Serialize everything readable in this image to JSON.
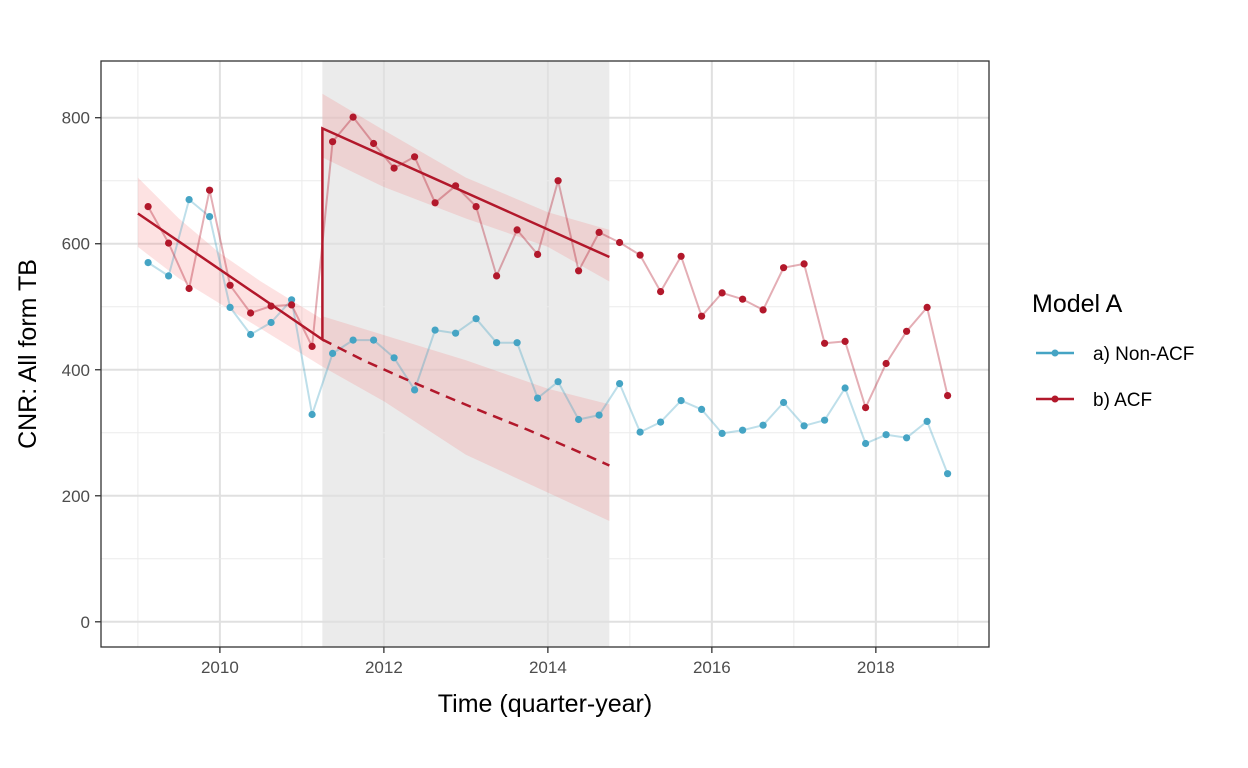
{
  "chart_data": {
    "type": "line",
    "xlabel": "Time (quarter-year)",
    "ylabel": "CNR: All form TB",
    "xlim": [
      2008.55,
      2019.38
    ],
    "ylim": [
      -40,
      890
    ],
    "x_ticks": [
      2010,
      2012,
      2014,
      2016,
      2018
    ],
    "x_tick_labels": [
      "2010",
      "2012",
      "2014",
      "2016",
      "2018"
    ],
    "y_ticks": [
      0,
      200,
      400,
      600,
      800
    ],
    "y_tick_labels": [
      "0",
      "200",
      "400",
      "600",
      "800"
    ],
    "grid": true,
    "shaded_period": [
      2011.25,
      2014.75
    ],
    "legend": {
      "title": "Model A",
      "position": "right",
      "entries": [
        "a) Non-ACF",
        "b) ACF"
      ]
    },
    "series": [
      {
        "name": "a) Non-ACF",
        "color": "#45a4c4",
        "x": [
          2009.125,
          2009.375,
          2009.625,
          2009.875,
          2010.125,
          2010.375,
          2010.625,
          2010.875,
          2011.125,
          2011.375,
          2011.625,
          2011.875,
          2012.125,
          2012.375,
          2012.625,
          2012.875,
          2013.125,
          2013.375,
          2013.625,
          2013.875,
          2014.125,
          2014.375,
          2014.625,
          2014.875,
          2015.125,
          2015.375,
          2015.625,
          2015.875,
          2016.125,
          2016.375,
          2016.625,
          2016.875,
          2017.125,
          2017.375,
          2017.625,
          2017.875,
          2018.125,
          2018.375,
          2018.625,
          2018.875
        ],
        "values": [
          570,
          549,
          670,
          643,
          499,
          456,
          475,
          511,
          329,
          426,
          447,
          447,
          419,
          368,
          463,
          458,
          481,
          443,
          443,
          355,
          381,
          321,
          328,
          378,
          301,
          317,
          351,
          337,
          299,
          304,
          312,
          348,
          311,
          320,
          371,
          283,
          297,
          292,
          318,
          235
        ]
      },
      {
        "name": "b) ACF",
        "color": "#b2182b",
        "x": [
          2009.125,
          2009.375,
          2009.625,
          2009.875,
          2010.125,
          2010.375,
          2010.625,
          2010.875,
          2011.125,
          2011.375,
          2011.625,
          2011.875,
          2012.125,
          2012.375,
          2012.625,
          2012.875,
          2013.125,
          2013.375,
          2013.625,
          2013.875,
          2014.125,
          2014.375,
          2014.625,
          2014.875,
          2015.125,
          2015.375,
          2015.625,
          2015.875,
          2016.125,
          2016.375,
          2016.625,
          2016.875,
          2017.125,
          2017.375,
          2017.625,
          2017.875,
          2018.125,
          2018.375,
          2018.625,
          2018.875
        ],
        "values": [
          659,
          601,
          529,
          685,
          534,
          490,
          501,
          503,
          437,
          762,
          801,
          759,
          720,
          738,
          665,
          692,
          659,
          549,
          622,
          583,
          700,
          557,
          618,
          602,
          582,
          524,
          580,
          485,
          522,
          512,
          495,
          562,
          568,
          442,
          445,
          340,
          410,
          461,
          499,
          359
        ]
      }
    ],
    "fit_lines": [
      {
        "segment": "pre",
        "x": [
          2009.0,
          2011.25
        ],
        "values": [
          648,
          448
        ]
      },
      {
        "segment": "acf",
        "x": [
          2011.25,
          2014.75
        ],
        "values": [
          783,
          579
        ]
      },
      {
        "segment": "counterfactual",
        "style": "dashed",
        "x": [
          2011.25,
          2011.75,
          2012.25,
          2012.75,
          2013.25,
          2013.75,
          2014.25,
          2014.75
        ],
        "values": [
          448,
          415,
          386,
          358,
          331,
          305,
          277,
          248
        ]
      }
    ],
    "confidence_bands": [
      {
        "segment": "pre",
        "x": [
          2009.0,
          2009.5,
          2010.0,
          2010.5,
          2011.0,
          2011.25
        ],
        "upper": [
          705,
          640,
          585,
          540,
          500,
          480
        ],
        "lower": [
          595,
          545,
          505,
          465,
          425,
          405
        ]
      },
      {
        "segment": "acf",
        "x": [
          2011.25,
          2012.0,
          2013.0,
          2014.0,
          2014.75
        ],
        "upper": [
          838,
          780,
          705,
          650,
          622
        ],
        "lower": [
          737,
          690,
          640,
          595,
          540
        ]
      },
      {
        "segment": "counterfactual",
        "x": [
          2011.25,
          2012.0,
          2013.0,
          2014.0,
          2014.75
        ],
        "upper": [
          485,
          455,
          415,
          370,
          345
        ],
        "lower": [
          405,
          350,
          265,
          205,
          160
        ]
      }
    ]
  }
}
